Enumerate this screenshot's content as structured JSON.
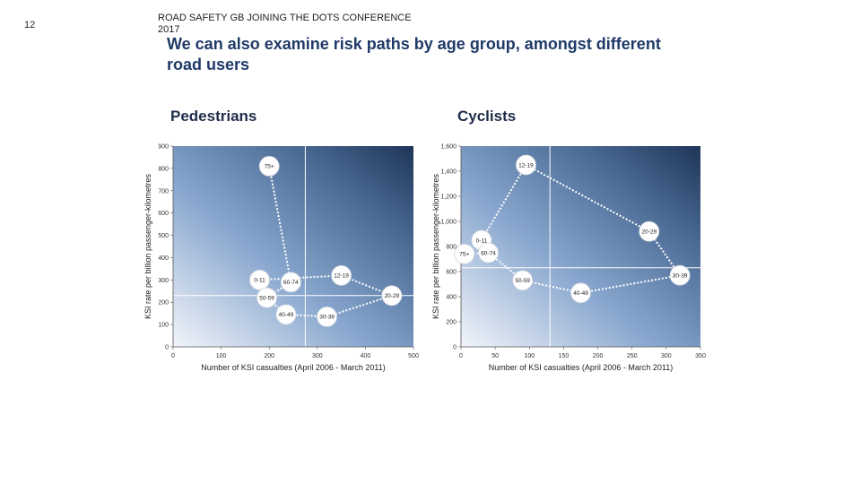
{
  "slide_number": "12",
  "header": "ROAD SAFETY GB JOINING THE DOTS CONFERENCE 2017",
  "title": "We can also examine risk paths by age group, amongst different road users",
  "chart_data": [
    {
      "type": "line",
      "title": "Pedestrians",
      "xlabel": "Number of KSI casualties (April 2006 - March 2011)",
      "ylabel": "KSI rate per billion passenger-kilometres",
      "xlim": [
        0,
        500
      ],
      "ylim": [
        0,
        900
      ],
      "xticks": [
        0,
        100,
        200,
        300,
        400,
        500
      ],
      "yticks": [
        0,
        100,
        200,
        300,
        400,
        500,
        600,
        700,
        800,
        900
      ],
      "xtick_labels": [
        "0",
        "100",
        "200",
        "300",
        "400",
        "500"
      ],
      "ytick_labels": [
        "0",
        "100",
        "200",
        "300",
        "400",
        "500",
        "600",
        "700",
        "800",
        "900"
      ],
      "reference_lines": {
        "x": 275,
        "y": 230
      },
      "points": [
        {
          "label": "0-11",
          "x": 180,
          "y": 300
        },
        {
          "label": "12-19",
          "x": 350,
          "y": 320
        },
        {
          "label": "20-29",
          "x": 455,
          "y": 230
        },
        {
          "label": "30-39",
          "x": 320,
          "y": 135
        },
        {
          "label": "40-49",
          "x": 235,
          "y": 145
        },
        {
          "label": "50-59",
          "x": 195,
          "y": 220
        },
        {
          "label": "60-74",
          "x": 245,
          "y": 290
        },
        {
          "label": "75+",
          "x": 200,
          "y": 810
        }
      ],
      "path_order": [
        "0-11",
        "12-19",
        "20-29",
        "30-39",
        "40-49",
        "50-59",
        "60-74",
        "75+"
      ]
    },
    {
      "type": "line",
      "title": "Cyclists",
      "xlabel": "Number of KSI casualties (April 2006 - March 2011)",
      "ylabel": "KSI rate per billion passenger-kilometres",
      "xlim": [
        0,
        350
      ],
      "ylim": [
        0,
        1600
      ],
      "xticks": [
        0,
        50,
        100,
        150,
        200,
        250,
        300,
        350
      ],
      "yticks": [
        0,
        200,
        400,
        600,
        800,
        1000,
        1200,
        1400,
        1600
      ],
      "xtick_labels": [
        "0",
        "50",
        "100",
        "150",
        "200",
        "250",
        "300",
        "350"
      ],
      "ytick_labels": [
        "0",
        "200",
        "400",
        "600",
        "800",
        "1,000",
        "1,200",
        "1,400",
        "1,600"
      ],
      "reference_lines": {
        "x": 130,
        "y": 630
      },
      "points": [
        {
          "label": "0-11",
          "x": 30,
          "y": 850
        },
        {
          "label": "12-19",
          "x": 95,
          "y": 1450
        },
        {
          "label": "20-29",
          "x": 275,
          "y": 920
        },
        {
          "label": "30-39",
          "x": 320,
          "y": 570
        },
        {
          "label": "40-49",
          "x": 175,
          "y": 430
        },
        {
          "label": "50-59",
          "x": 90,
          "y": 530
        },
        {
          "label": "60-74",
          "x": 40,
          "y": 750
        },
        {
          "label": "75+",
          "x": 5,
          "y": 740
        }
      ],
      "path_order": [
        "0-11",
        "12-19",
        "20-29",
        "30-39",
        "40-49",
        "50-59",
        "60-74",
        "75+"
      ]
    }
  ]
}
